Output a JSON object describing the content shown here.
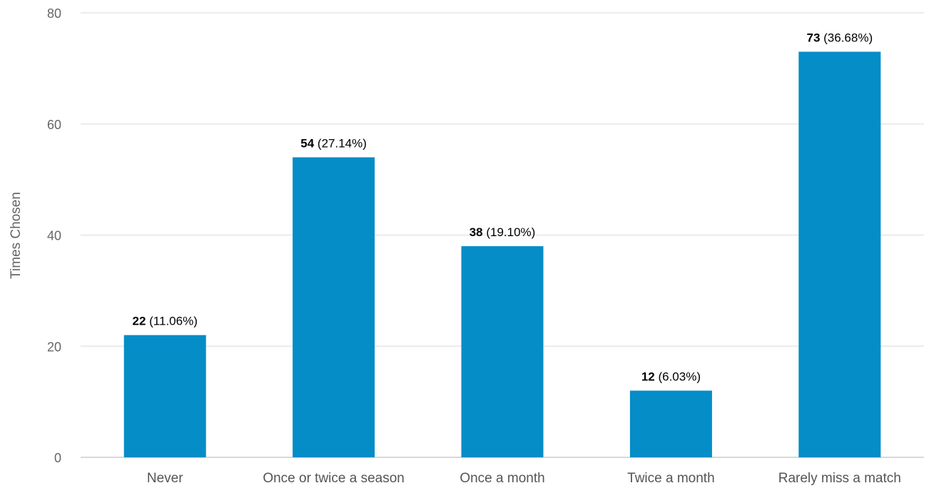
{
  "chart_data": {
    "type": "bar",
    "categories": [
      "Never",
      "Once or twice a season",
      "Once a month",
      "Twice a month",
      "Rarely miss a match"
    ],
    "values": [
      22,
      54,
      38,
      12,
      73
    ],
    "percent_labels": [
      "(11.06%)",
      "(27.14%)",
      "(19.10%)",
      "(6.03%)",
      "(36.68%)"
    ],
    "ylabel": "Times Chosen",
    "ylim": [
      0,
      80
    ],
    "yticks": [
      0,
      20,
      40,
      60,
      80
    ],
    "grid": true,
    "bar_color": "#058DC7"
  }
}
